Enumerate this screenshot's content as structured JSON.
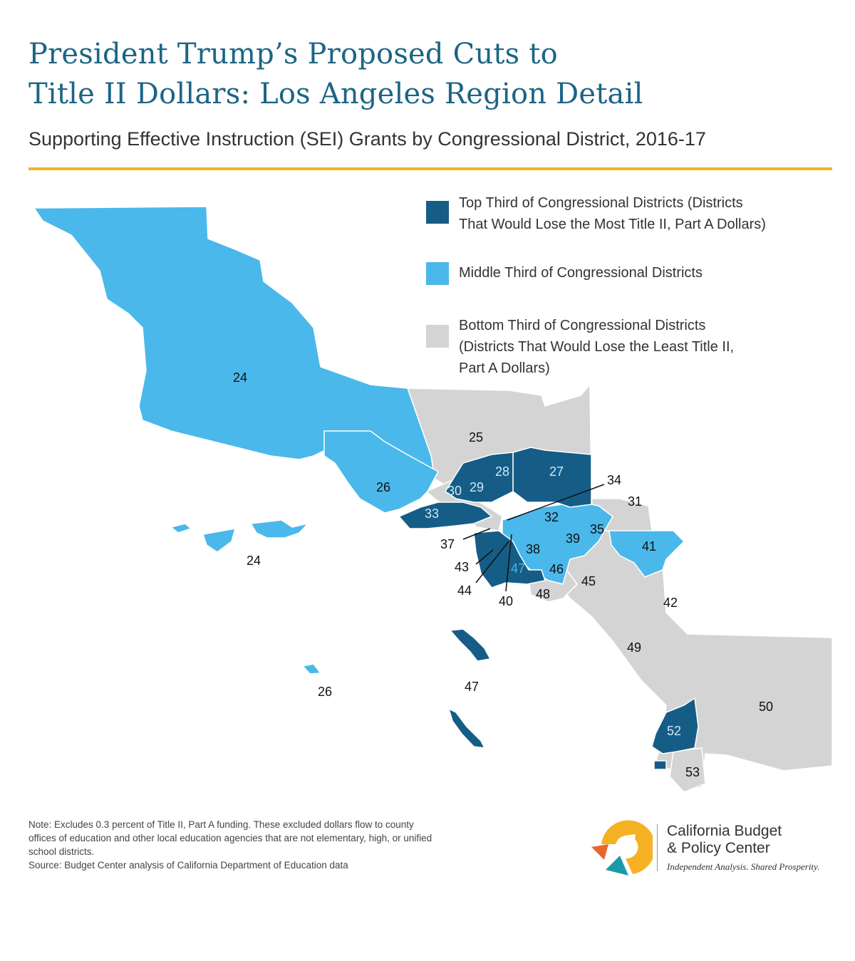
{
  "header": {
    "title_line1": "President Trump’s Proposed Cuts to",
    "title_line2": "Title II Dollars: Los Angeles Region Detail",
    "subtitle": "Supporting Effective Instruction (SEI) Grants by Congressional District, 2016-17"
  },
  "colors": {
    "top_third": "#155d87",
    "middle_third": "#4ab8ea",
    "bottom_third": "#d4d4d4",
    "accent_rule": "#f4b223",
    "title": "#1c6585"
  },
  "legend": [
    {
      "key": "top",
      "lines": [
        "Top Third of Congressional Districts (Districts",
        "That Would Lose the Most Title II, Part A Dollars)"
      ]
    },
    {
      "key": "middle",
      "lines": [
        "Middle Third of Congressional Districts"
      ]
    },
    {
      "key": "bottom",
      "lines": [
        "Bottom Third of Congressional Districts",
        "(Districts That Would Lose the Least Title II,",
        "Part A Dollars)"
      ]
    }
  ],
  "map": {
    "districts": {
      "top_third": [
        "27",
        "28",
        "29",
        "30",
        "33",
        "34",
        "37",
        "40",
        "43",
        "44",
        "47",
        "52"
      ],
      "middle_third": [
        "24",
        "26",
        "32",
        "35",
        "38",
        "39",
        "41",
        "46"
      ],
      "bottom_third": [
        "25",
        "31",
        "42",
        "45",
        "48",
        "49",
        "50",
        "53"
      ]
    },
    "labels": {
      "d24_main": "24",
      "d24_island": "24",
      "d25": "25",
      "d26_main": "26",
      "d26_island": "26",
      "d27": "27",
      "d28": "28",
      "d29": "29",
      "d30": "30",
      "d31": "31",
      "d32": "32",
      "d33": "33",
      "d34": "34",
      "d35": "35",
      "d37": "37",
      "d38": "38",
      "d39": "39",
      "d40": "40",
      "d41": "41",
      "d42": "42",
      "d43": "43",
      "d44": "44",
      "d45": "45",
      "d46": "46",
      "d47_main": "47",
      "d47_island": "47",
      "d48": "48",
      "d49": "49",
      "d50": "50",
      "d52": "52",
      "d53": "53"
    }
  },
  "note": {
    "line1": "Note: Excludes 0.3 percent of Title II, Part A funding. These excluded dollars flow to county",
    "line2": "offices of education and other local education agencies that are not elementary, high, or unified",
    "line3": "school districts.",
    "source": "Source: Budget Center analysis of California Department of Education data"
  },
  "logo": {
    "name_line1": "California Budget",
    "name_line2": "& Policy Center",
    "tagline": "Independent Analysis. Shared Prosperity."
  }
}
